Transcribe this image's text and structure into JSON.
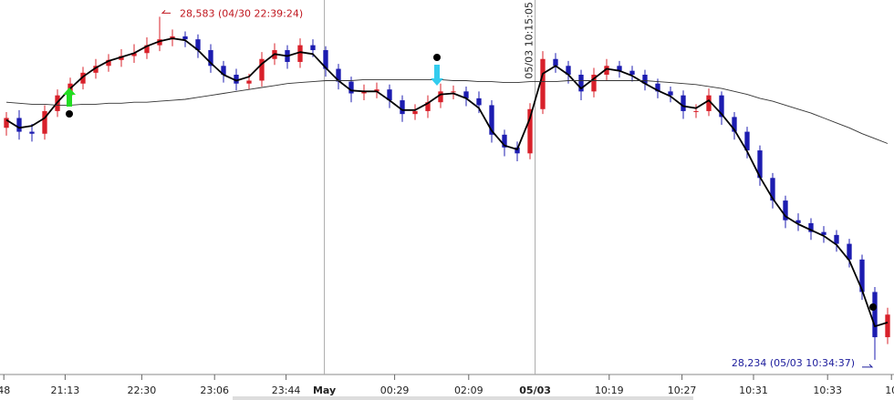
{
  "chart_data": {
    "type": "candlestick",
    "open": [
      28470,
      28480,
      28466,
      28464,
      28487,
      28503,
      28515,
      28526,
      28533,
      28539,
      28543,
      28546,
      28554,
      28560,
      28563,
      28560,
      28549,
      28533,
      28524,
      28515,
      28518,
      28540,
      28549,
      28537,
      28554,
      28549,
      28530,
      28517,
      28505,
      28507,
      28509,
      28498,
      28484,
      28487,
      28496,
      28507,
      28507,
      28500,
      28493,
      28463,
      28450,
      28444,
      28489,
      28540,
      28533,
      28524,
      28507,
      28524,
      28533,
      28528,
      28524,
      28515,
      28507,
      28503,
      28487,
      28487,
      28503,
      28481,
      28466,
      28447,
      28419,
      28396,
      28376,
      28373,
      28364,
      28361,
      28352,
      28336,
      28303,
      28257
    ],
    "high": [
      28486,
      28488,
      28474,
      28493,
      28509,
      28521,
      28532,
      28540,
      28545,
      28550,
      28555,
      28562,
      28583,
      28570,
      28568,
      28565,
      28555,
      28538,
      28530,
      28525,
      28547,
      28556,
      28554,
      28561,
      28560,
      28553,
      28535,
      28522,
      28514,
      28516,
      28514,
      28503,
      28494,
      28503,
      28515,
      28513,
      28512,
      28507,
      28498,
      28468,
      28456,
      28495,
      28548,
      28546,
      28538,
      28529,
      28531,
      28540,
      28538,
      28533,
      28529,
      28520,
      28512,
      28508,
      28494,
      28510,
      28507,
      28486,
      28471,
      28452,
      28424,
      28401,
      28383,
      28378,
      28370,
      28366,
      28357,
      28341,
      28308,
      28287
    ],
    "low": [
      28462,
      28458,
      28456,
      28458,
      28481,
      28497,
      28509,
      28520,
      28527,
      28532,
      28536,
      28540,
      28548,
      28553,
      28552,
      28541,
      28526,
      28516,
      28508,
      28509,
      28512,
      28534,
      28530,
      28531,
      28542,
      28522,
      28509,
      28496,
      28498,
      28500,
      28490,
      28476,
      28478,
      28480,
      28490,
      28499,
      28492,
      28485,
      28455,
      28441,
      28436,
      28438,
      28484,
      28526,
      28515,
      28498,
      28501,
      28518,
      28521,
      28517,
      28508,
      28500,
      28496,
      28479,
      28480,
      28482,
      28473,
      28458,
      28439,
      28411,
      28388,
      28368,
      28365,
      28356,
      28353,
      28344,
      28328,
      28295,
      28234,
      28250
    ],
    "close": [
      28480,
      28466,
      28464,
      28487,
      28503,
      28515,
      28526,
      28533,
      28539,
      28543,
      28546,
      28554,
      28560,
      28563,
      28560,
      28549,
      28533,
      28524,
      28515,
      28518,
      28540,
      28549,
      28537,
      28554,
      28549,
      28530,
      28517,
      28505,
      28507,
      28509,
      28498,
      28484,
      28487,
      28496,
      28507,
      28507,
      28500,
      28493,
      28463,
      28450,
      28444,
      28489,
      28540,
      28533,
      28524,
      28507,
      28524,
      28533,
      28528,
      28524,
      28515,
      28507,
      28503,
      28487,
      28487,
      28503,
      28481,
      28466,
      28447,
      28419,
      28396,
      28376,
      28373,
      28364,
      28361,
      28352,
      28336,
      28303,
      28257,
      28280
    ],
    "up_color": "#d8202a",
    "down_color": "#1c1cb0",
    "series": [
      {
        "color": "#000000",
        "values": [
          28478,
          28470,
          28472,
          28480,
          28496,
          28510,
          28522,
          28531,
          28538,
          28542,
          28546,
          28553,
          28558,
          28561,
          28559,
          28549,
          28536,
          28524,
          28518,
          28522,
          28535,
          28545,
          28543,
          28547,
          28545,
          28531,
          28518,
          28508,
          28507,
          28507,
          28498,
          28488,
          28488,
          28495,
          28504,
          28505,
          28500,
          28490,
          28467,
          28452,
          28448,
          28480,
          28525,
          28533,
          28524,
          28510,
          28520,
          28530,
          28528,
          28523,
          28515,
          28508,
          28502,
          28492,
          28490,
          28498,
          28484,
          28468,
          28446,
          28420,
          28398,
          28380,
          28372,
          28366,
          28360,
          28351,
          28335,
          28305,
          28268,
          28272
        ]
      },
      {
        "color": "#333333",
        "values": [
          28496,
          28495,
          28494,
          28494,
          28493,
          28493,
          28494,
          28494,
          28495,
          28495,
          28496,
          28496,
          28497,
          28498,
          28499,
          28501,
          28503,
          28505,
          28507,
          28509,
          28511,
          28513,
          28515,
          28516,
          28517,
          28518,
          28518,
          28518,
          28519,
          28519,
          28519,
          28519,
          28519,
          28519,
          28519,
          28518,
          28518,
          28517,
          28517,
          28516,
          28516,
          28517,
          28517,
          28517,
          28518,
          28518,
          28518,
          28518,
          28518,
          28518,
          28518,
          28517,
          28516,
          28515,
          28514,
          28512,
          28510,
          28507,
          28504,
          28500,
          28497,
          28493,
          28489,
          28485,
          28480,
          28475,
          28470,
          28464,
          28459,
          28454
        ]
      }
    ],
    "xlim": [
      -0.5,
      69.5
    ],
    "ylim": [
      28220,
      28600
    ],
    "xticks": [
      {
        "value": -0.2,
        "label": "48"
      },
      {
        "value": 4.6,
        "label": "21:13"
      },
      {
        "value": 10.6,
        "label": "22:30"
      },
      {
        "value": 16.3,
        "label": "23:06"
      },
      {
        "value": 21.9,
        "label": "23:44"
      },
      {
        "value": 30.4,
        "label": "00:29"
      },
      {
        "value": 36.2,
        "label": "02:09"
      },
      {
        "value": 47.2,
        "label": "10:19"
      },
      {
        "value": 52.9,
        "label": "10:27"
      },
      {
        "value": 58.5,
        "label": "10:31"
      },
      {
        "value": 64.3,
        "label": "10:33"
      },
      {
        "value": 69.3,
        "label": "10"
      }
    ],
    "sessions": [
      {
        "value": 24.9,
        "label": "May"
      },
      {
        "value": 41.4,
        "label": "05/03",
        "note": "05/03 10:15:05"
      }
    ],
    "annotations": [
      {
        "text": "28,583 (04/30 22:39:24)",
        "index": 12,
        "value": 28583,
        "color": "#c0161e",
        "side": "right"
      },
      {
        "text": "28,234 (05/03 10:34:37)",
        "index": 68,
        "value": 28234,
        "color": "#1c1c9c",
        "side": "left"
      }
    ]
  }
}
